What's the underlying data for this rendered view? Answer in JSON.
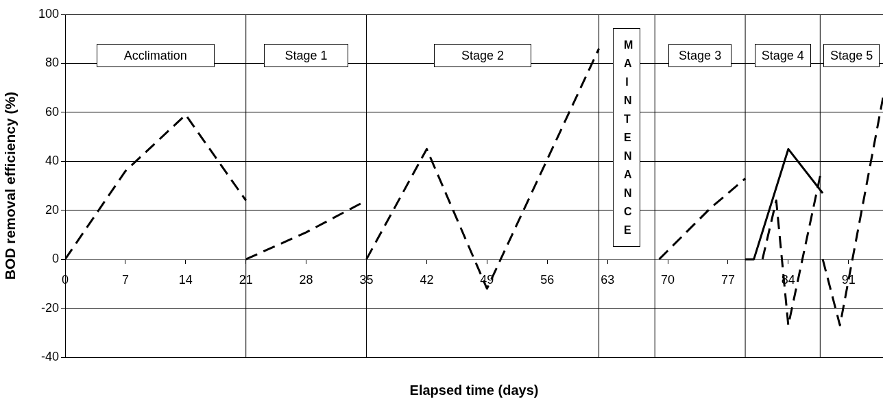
{
  "chart_data": {
    "type": "line",
    "xlabel": "Elapsed time (days)",
    "ylabel": "BOD removal efficiency (%)",
    "xlim": [
      0,
      95
    ],
    "xticks": [
      0,
      7,
      14,
      21,
      28,
      35,
      42,
      49,
      56,
      63,
      70,
      77,
      84,
      91
    ],
    "ylim": [
      -40,
      100
    ],
    "yticks": [
      -40,
      -20,
      0,
      20,
      40,
      60,
      80,
      100
    ],
    "grid": "y",
    "legend": false,
    "marker": "none",
    "series": [
      {
        "color": "#000000",
        "line_style": "dashed",
        "x": [
          0,
          7,
          14,
          21
        ],
        "values": [
          0,
          36,
          59,
          24
        ]
      },
      {
        "color": "#000000",
        "line_style": "dashed",
        "x": [
          21,
          28,
          35
        ],
        "values": [
          0,
          11,
          24
        ]
      },
      {
        "color": "#000000",
        "line_style": "dashed",
        "x": [
          35,
          42,
          49,
          62
        ],
        "values": [
          0,
          45,
          -12,
          86
        ]
      },
      {
        "color": "#000000",
        "line_style": "dashed",
        "x": [
          69,
          75,
          79
        ],
        "values": [
          0,
          21,
          33
        ]
      },
      {
        "color": "#000000",
        "line_style": "solid",
        "x": [
          79,
          80,
          84,
          88
        ],
        "values": [
          0,
          0,
          45,
          27
        ]
      },
      {
        "color": "#000000",
        "line_style": "dashed",
        "x": [
          81,
          82.6,
          84,
          87.7
        ],
        "values": [
          0,
          24,
          -27,
          34
        ]
      },
      {
        "color": "#000000",
        "line_style": "dashed",
        "x": [
          88,
          90,
          95
        ],
        "values": [
          0,
          -27,
          66
        ]
      }
    ],
    "ref_lines": [
      {
        "axis": "x",
        "value": 21,
        "color": "#000000"
      },
      {
        "axis": "x",
        "value": 35,
        "color": "#000000"
      },
      {
        "axis": "x",
        "value": 62,
        "color": "#000000"
      },
      {
        "axis": "x",
        "value": 68.5,
        "color": "#000000"
      },
      {
        "axis": "x",
        "value": 79,
        "color": "#000000"
      },
      {
        "axis": "x",
        "value": 87.7,
        "color": "#000000"
      }
    ],
    "annotations": [
      "Acclimation",
      "Stage 1",
      "Stage 2",
      "MAINTENANCE",
      "Stage 3",
      "Stage 4",
      "Stage 5"
    ]
  }
}
